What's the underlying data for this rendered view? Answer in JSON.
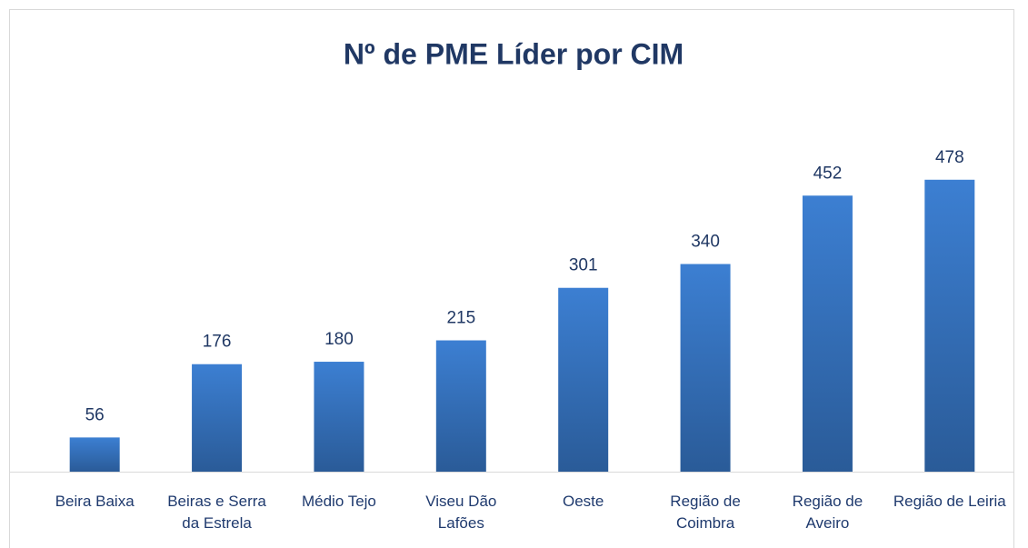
{
  "chart_data": {
    "type": "bar",
    "title": "Nº de PME Líder por CIM",
    "categories": [
      "Beira Baixa",
      "Beiras e Serra da Estrela",
      "Médio Tejo",
      "Viseu Dão Lafões",
      "Oeste",
      "Região de Coimbra",
      "Região de Aveiro",
      "Região de Leiria"
    ],
    "values": [
      56,
      176,
      180,
      215,
      301,
      340,
      452,
      478
    ],
    "color": "#3a78c9",
    "ylim": [
      0,
      500
    ]
  }
}
